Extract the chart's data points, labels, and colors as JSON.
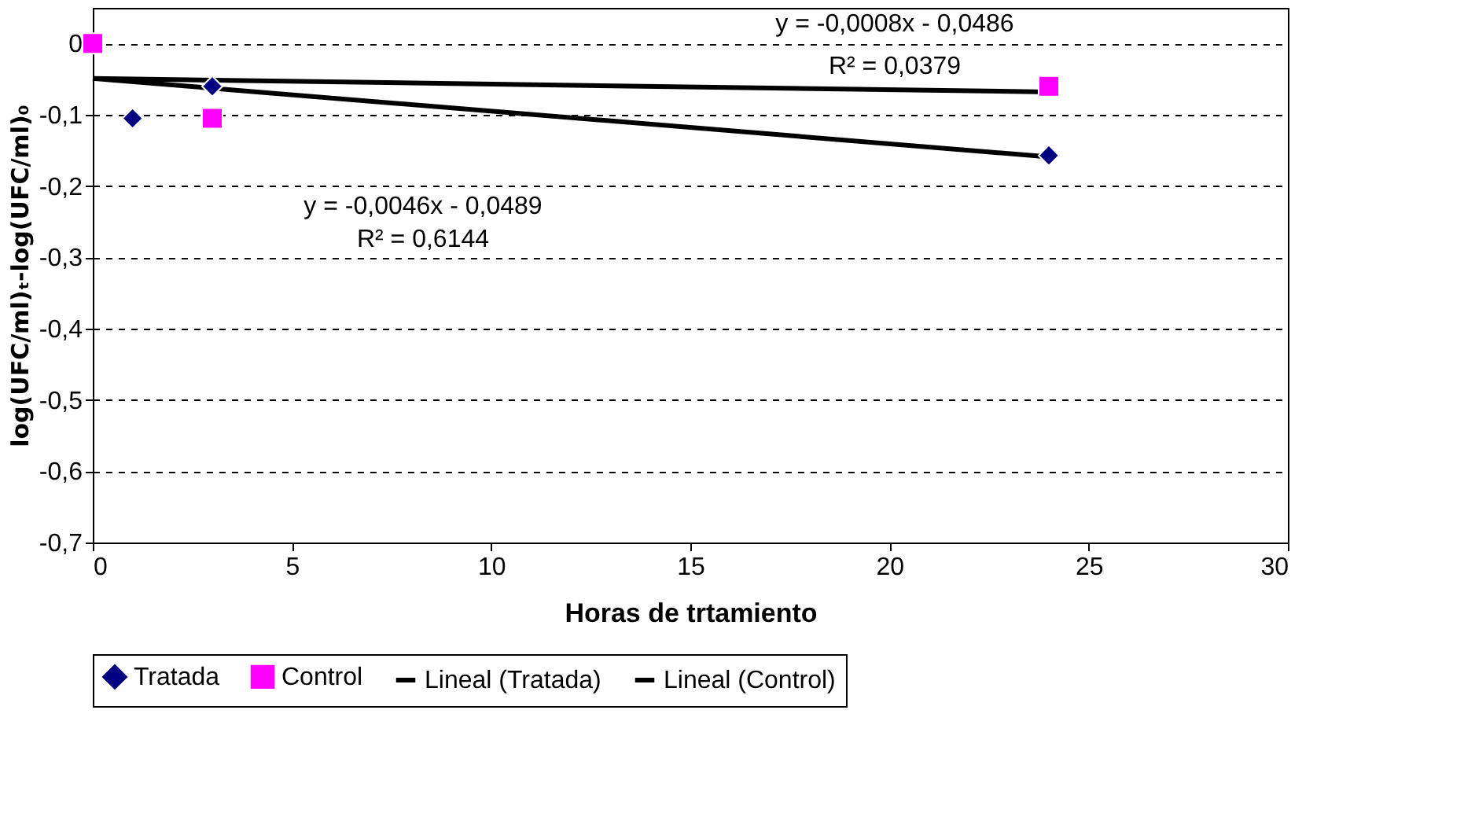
{
  "chart_data": {
    "type": "scatter",
    "xlabel": "Horas de trtamiento",
    "ylabel": "log(UFC/ml)ₜ-log(UFC/ml)₀",
    "xlim": [
      0,
      30
    ],
    "xticks": [
      0,
      5,
      10,
      15,
      20,
      25,
      30
    ],
    "ylim": [
      -0.7,
      0.05
    ],
    "yticks": [
      {
        "value": 0,
        "label": "0"
      },
      {
        "value": -0.1,
        "label": "-0,1"
      },
      {
        "value": -0.2,
        "label": "-0,2"
      },
      {
        "value": -0.3,
        "label": "-0,3"
      },
      {
        "value": -0.4,
        "label": "-0,4"
      },
      {
        "value": -0.5,
        "label": "-0,5"
      },
      {
        "value": -0.6,
        "label": "-0,6"
      },
      {
        "value": -0.7,
        "label": "-0,7"
      }
    ],
    "grid": "y",
    "legend": "bottom",
    "series": [
      {
        "name": "Tratada",
        "marker": "diamond",
        "color": "#000080",
        "x": [
          1,
          3,
          24
        ],
        "values": [
          -0.105,
          -0.06,
          -0.157
        ]
      },
      {
        "name": "Control",
        "marker": "square",
        "color": "#ff00ff",
        "x": [
          0,
          3,
          24
        ],
        "values": [
          0,
          -0.105,
          -0.06
        ]
      },
      {
        "name": "Lineal (Tratada)",
        "type": "line",
        "marker": "none",
        "line_style": "solid",
        "color": "#000000",
        "x": [
          0,
          24
        ],
        "values": [
          -0.049,
          -0.159
        ]
      },
      {
        "name": "Lineal (Control)",
        "type": "line",
        "marker": "none",
        "line_style": "solid",
        "color": "#000000",
        "x": [
          0,
          24
        ],
        "values": [
          -0.049,
          -0.068
        ]
      }
    ],
    "annotations": [
      "y = -0,0008x - 0,0486",
      "R² = 0,0379",
      "y = -0,0046x - 0,0489",
      "R² = 0,6144"
    ]
  }
}
